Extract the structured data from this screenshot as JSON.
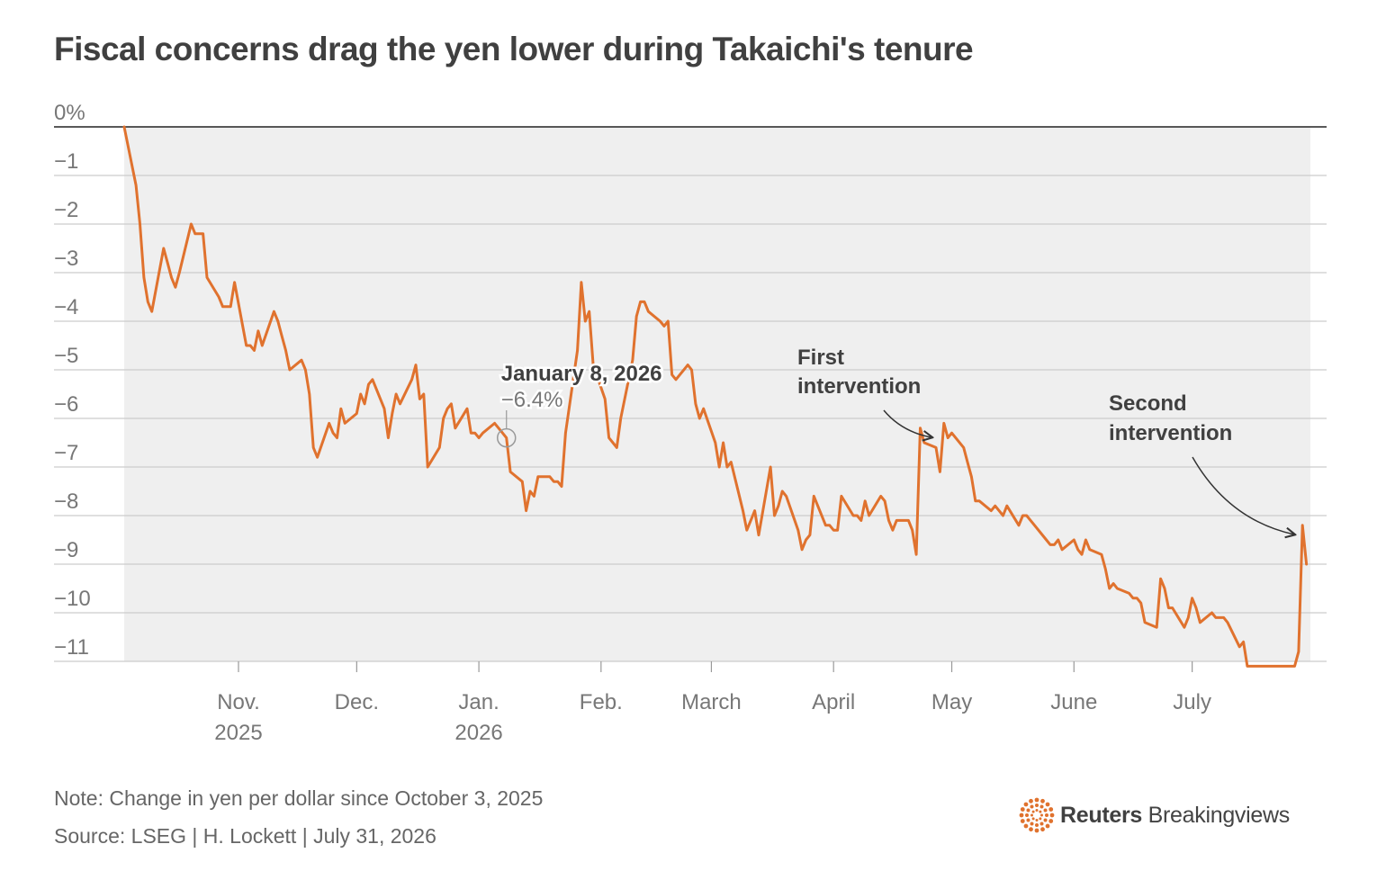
{
  "title": "Fiscal concerns drag the yen lower during Takaichi's tenure",
  "note": "Note: Change in yen per dollar since October 3, 2025",
  "source": "Source: LSEG | H. Lockett | July 31, 2026",
  "logo": {
    "brand": "Reuters",
    "product": "Breakingviews",
    "icon": "reuters-dot-ring-icon"
  },
  "colors": {
    "line": "#e0722e",
    "band": "#efefef",
    "grid": "#cccccc",
    "text": "#404040",
    "axis_text": "#777777"
  },
  "chart_data": {
    "type": "line",
    "title": "Fiscal concerns drag the yen lower during Takaichi's tenure",
    "xlabel": "",
    "ylabel": "",
    "ylim": [
      -11,
      0
    ],
    "xlim": [
      "2025-10-03",
      "2026-07-31"
    ],
    "grid": true,
    "y_ticks": [
      {
        "value": 0,
        "label": "0%"
      },
      {
        "value": -1,
        "label": "−1"
      },
      {
        "value": -2,
        "label": "−2"
      },
      {
        "value": -3,
        "label": "−3"
      },
      {
        "value": -4,
        "label": "−4"
      },
      {
        "value": -5,
        "label": "−5"
      },
      {
        "value": -6,
        "label": "−6"
      },
      {
        "value": -7,
        "label": "−7"
      },
      {
        "value": -8,
        "label": "−8"
      },
      {
        "value": -9,
        "label": "−9"
      },
      {
        "value": -10,
        "label": "−10"
      },
      {
        "value": -11,
        "label": "−11"
      }
    ],
    "x_ticks": [
      {
        "date": "2025-11-01",
        "label": "Nov.",
        "sublabel": "2025"
      },
      {
        "date": "2025-12-01",
        "label": "Dec.",
        "sublabel": ""
      },
      {
        "date": "2026-01-01",
        "label": "Jan.",
        "sublabel": "2026"
      },
      {
        "date": "2026-02-01",
        "label": "Feb.",
        "sublabel": ""
      },
      {
        "date": "2026-03-01",
        "label": "March",
        "sublabel": ""
      },
      {
        "date": "2026-04-01",
        "label": "April",
        "sublabel": ""
      },
      {
        "date": "2026-05-01",
        "label": "May",
        "sublabel": ""
      },
      {
        "date": "2026-06-01",
        "label": "June",
        "sublabel": ""
      },
      {
        "date": "2026-07-01",
        "label": "July",
        "sublabel": ""
      }
    ],
    "series": [
      {
        "name": "",
        "color": "#e0722e",
        "points": [
          [
            "2025-10-03",
            0.0
          ],
          [
            "2025-10-06",
            -1.2
          ],
          [
            "2025-10-07",
            -2.0
          ],
          [
            "2025-10-08",
            -3.1
          ],
          [
            "2025-10-09",
            -3.6
          ],
          [
            "2025-10-10",
            -3.8
          ],
          [
            "2025-10-13",
            -2.5
          ],
          [
            "2025-10-14",
            -2.8
          ],
          [
            "2025-10-15",
            -3.1
          ],
          [
            "2025-10-16",
            -3.3
          ],
          [
            "2025-10-17",
            -3.0
          ],
          [
            "2025-10-20",
            -2.0
          ],
          [
            "2025-10-21",
            -2.2
          ],
          [
            "2025-10-22",
            -2.2
          ],
          [
            "2025-10-23",
            -2.2
          ],
          [
            "2025-10-24",
            -3.1
          ],
          [
            "2025-10-27",
            -3.5
          ],
          [
            "2025-10-28",
            -3.7
          ],
          [
            "2025-10-29",
            -3.7
          ],
          [
            "2025-10-30",
            -3.7
          ],
          [
            "2025-10-31",
            -3.2
          ],
          [
            "2025-11-03",
            -4.5
          ],
          [
            "2025-11-04",
            -4.5
          ],
          [
            "2025-11-05",
            -4.6
          ],
          [
            "2025-11-06",
            -4.2
          ],
          [
            "2025-11-07",
            -4.5
          ],
          [
            "2025-11-10",
            -3.8
          ],
          [
            "2025-11-11",
            -4.0
          ],
          [
            "2025-11-12",
            -4.3
          ],
          [
            "2025-11-13",
            -4.6
          ],
          [
            "2025-11-14",
            -5.0
          ],
          [
            "2025-11-17",
            -4.8
          ],
          [
            "2025-11-18",
            -5.0
          ],
          [
            "2025-11-19",
            -5.5
          ],
          [
            "2025-11-20",
            -6.6
          ],
          [
            "2025-11-21",
            -6.8
          ],
          [
            "2025-11-24",
            -6.1
          ],
          [
            "2025-11-25",
            -6.3
          ],
          [
            "2025-11-26",
            -6.4
          ],
          [
            "2025-11-27",
            -5.8
          ],
          [
            "2025-11-28",
            -6.1
          ],
          [
            "2025-12-01",
            -5.9
          ],
          [
            "2025-12-02",
            -5.5
          ],
          [
            "2025-12-03",
            -5.7
          ],
          [
            "2025-12-04",
            -5.3
          ],
          [
            "2025-12-05",
            -5.2
          ],
          [
            "2025-12-08",
            -5.8
          ],
          [
            "2025-12-09",
            -6.4
          ],
          [
            "2025-12-10",
            -5.9
          ],
          [
            "2025-12-11",
            -5.5
          ],
          [
            "2025-12-12",
            -5.7
          ],
          [
            "2025-12-15",
            -5.2
          ],
          [
            "2025-12-16",
            -4.9
          ],
          [
            "2025-12-17",
            -5.6
          ],
          [
            "2025-12-18",
            -5.5
          ],
          [
            "2025-12-19",
            -7.0
          ],
          [
            "2025-12-22",
            -6.6
          ],
          [
            "2025-12-23",
            -6.0
          ],
          [
            "2025-12-24",
            -5.8
          ],
          [
            "2025-12-25",
            -5.7
          ],
          [
            "2025-12-26",
            -6.2
          ],
          [
            "2025-12-29",
            -5.8
          ],
          [
            "2025-12-30",
            -6.3
          ],
          [
            "2025-12-31",
            -6.3
          ],
          [
            "2026-01-01",
            -6.4
          ],
          [
            "2026-01-02",
            -6.3
          ],
          [
            "2026-01-05",
            -6.1
          ],
          [
            "2026-01-06",
            -6.2
          ],
          [
            "2026-01-07",
            -6.3
          ],
          [
            "2026-01-08",
            -6.4
          ],
          [
            "2026-01-09",
            -7.1
          ],
          [
            "2026-01-12",
            -7.3
          ],
          [
            "2026-01-13",
            -7.9
          ],
          [
            "2026-01-14",
            -7.5
          ],
          [
            "2026-01-15",
            -7.6
          ],
          [
            "2026-01-16",
            -7.2
          ],
          [
            "2026-01-19",
            -7.2
          ],
          [
            "2026-01-20",
            -7.3
          ],
          [
            "2026-01-21",
            -7.3
          ],
          [
            "2026-01-22",
            -7.4
          ],
          [
            "2026-01-23",
            -6.3
          ],
          [
            "2026-01-26",
            -4.6
          ],
          [
            "2026-01-27",
            -3.2
          ],
          [
            "2026-01-28",
            -4.0
          ],
          [
            "2026-01-29",
            -3.8
          ],
          [
            "2026-01-30",
            -4.9
          ],
          [
            "2026-02-02",
            -5.6
          ],
          [
            "2026-02-03",
            -6.4
          ],
          [
            "2026-02-04",
            -6.5
          ],
          [
            "2026-02-05",
            -6.6
          ],
          [
            "2026-02-06",
            -6.0
          ],
          [
            "2026-02-09",
            -4.8
          ],
          [
            "2026-02-10",
            -3.9
          ],
          [
            "2026-02-11",
            -3.6
          ],
          [
            "2026-02-12",
            -3.6
          ],
          [
            "2026-02-13",
            -3.8
          ],
          [
            "2026-02-16",
            -4.0
          ],
          [
            "2026-02-17",
            -4.1
          ],
          [
            "2026-02-18",
            -4.0
          ],
          [
            "2026-02-19",
            -5.1
          ],
          [
            "2026-02-20",
            -5.2
          ],
          [
            "2026-02-23",
            -4.9
          ],
          [
            "2026-02-24",
            -5.0
          ],
          [
            "2026-02-25",
            -5.7
          ],
          [
            "2026-02-26",
            -6.0
          ],
          [
            "2026-02-27",
            -5.8
          ],
          [
            "2026-03-02",
            -6.5
          ],
          [
            "2026-03-03",
            -7.0
          ],
          [
            "2026-03-04",
            -6.5
          ],
          [
            "2026-03-05",
            -7.0
          ],
          [
            "2026-03-06",
            -6.9
          ],
          [
            "2026-03-09",
            -7.9
          ],
          [
            "2026-03-10",
            -8.3
          ],
          [
            "2026-03-11",
            -8.1
          ],
          [
            "2026-03-12",
            -7.9
          ],
          [
            "2026-03-13",
            -8.4
          ],
          [
            "2026-03-16",
            -7.0
          ],
          [
            "2026-03-17",
            -8.0
          ],
          [
            "2026-03-18",
            -7.8
          ],
          [
            "2026-03-19",
            -7.5
          ],
          [
            "2026-03-20",
            -7.6
          ],
          [
            "2026-03-23",
            -8.3
          ],
          [
            "2026-03-24",
            -8.7
          ],
          [
            "2026-03-25",
            -8.5
          ],
          [
            "2026-03-26",
            -8.4
          ],
          [
            "2026-03-27",
            -7.6
          ],
          [
            "2026-03-30",
            -8.2
          ],
          [
            "2026-03-31",
            -8.2
          ],
          [
            "2026-04-01",
            -8.3
          ],
          [
            "2026-04-02",
            -8.3
          ],
          [
            "2026-04-03",
            -7.6
          ],
          [
            "2026-04-06",
            -8.0
          ],
          [
            "2026-04-07",
            -8.0
          ],
          [
            "2026-04-08",
            -8.1
          ],
          [
            "2026-04-09",
            -7.7
          ],
          [
            "2026-04-10",
            -8.0
          ],
          [
            "2026-04-13",
            -7.6
          ],
          [
            "2026-04-14",
            -7.7
          ],
          [
            "2026-04-15",
            -8.1
          ],
          [
            "2026-04-16",
            -8.3
          ],
          [
            "2026-04-17",
            -8.1
          ],
          [
            "2026-04-20",
            -8.1
          ],
          [
            "2026-04-21",
            -8.3
          ],
          [
            "2026-04-22",
            -8.8
          ],
          [
            "2026-04-23",
            -6.2
          ],
          [
            "2026-04-24",
            -6.5
          ],
          [
            "2026-04-27",
            -6.6
          ],
          [
            "2026-04-28",
            -7.1
          ],
          [
            "2026-04-29",
            -6.1
          ],
          [
            "2026-04-30",
            -6.4
          ],
          [
            "2026-05-01",
            -6.3
          ],
          [
            "2026-05-04",
            -6.6
          ],
          [
            "2026-05-05",
            -6.9
          ],
          [
            "2026-05-06",
            -7.2
          ],
          [
            "2026-05-07",
            -7.7
          ],
          [
            "2026-05-08",
            -7.7
          ],
          [
            "2026-05-11",
            -7.9
          ],
          [
            "2026-05-12",
            -7.8
          ],
          [
            "2026-05-13",
            -7.9
          ],
          [
            "2026-05-14",
            -8.0
          ],
          [
            "2026-05-15",
            -7.8
          ],
          [
            "2026-05-18",
            -8.2
          ],
          [
            "2026-05-19",
            -8.0
          ],
          [
            "2026-05-20",
            -8.0
          ],
          [
            "2026-05-21",
            -8.1
          ],
          [
            "2026-05-22",
            -8.2
          ],
          [
            "2026-05-25",
            -8.5
          ],
          [
            "2026-05-26",
            -8.6
          ],
          [
            "2026-05-27",
            -8.6
          ],
          [
            "2026-05-28",
            -8.5
          ],
          [
            "2026-05-29",
            -8.7
          ],
          [
            "2026-06-01",
            -8.5
          ],
          [
            "2026-06-02",
            -8.7
          ],
          [
            "2026-06-03",
            -8.8
          ],
          [
            "2026-06-04",
            -8.5
          ],
          [
            "2026-06-05",
            -8.7
          ],
          [
            "2026-06-08",
            -8.8
          ],
          [
            "2026-06-09",
            -9.1
          ],
          [
            "2026-06-10",
            -9.5
          ],
          [
            "2026-06-11",
            -9.4
          ],
          [
            "2026-06-12",
            -9.5
          ],
          [
            "2026-06-15",
            -9.6
          ],
          [
            "2026-06-16",
            -9.7
          ],
          [
            "2026-06-17",
            -9.7
          ],
          [
            "2026-06-18",
            -9.8
          ],
          [
            "2026-06-19",
            -10.2
          ],
          [
            "2026-06-22",
            -10.3
          ],
          [
            "2026-06-23",
            -9.3
          ],
          [
            "2026-06-24",
            -9.5
          ],
          [
            "2026-06-25",
            -9.9
          ],
          [
            "2026-06-26",
            -9.9
          ],
          [
            "2026-06-29",
            -10.3
          ],
          [
            "2026-06-30",
            -10.1
          ],
          [
            "2026-07-01",
            -9.7
          ],
          [
            "2026-07-02",
            -9.9
          ],
          [
            "2026-07-03",
            -10.2
          ],
          [
            "2026-07-06",
            -10.0
          ],
          [
            "2026-07-07",
            -10.1
          ],
          [
            "2026-07-08",
            -10.1
          ],
          [
            "2026-07-09",
            -10.1
          ],
          [
            "2026-07-10",
            -10.2
          ],
          [
            "2026-07-13",
            -10.7
          ],
          [
            "2026-07-14",
            -10.6
          ],
          [
            "2026-07-15",
            -11.1
          ],
          [
            "2026-07-20",
            -11.1
          ],
          [
            "2026-07-27",
            -11.1
          ],
          [
            "2026-07-28",
            -10.8
          ],
          [
            "2026-07-29",
            -8.2
          ],
          [
            "2026-07-30",
            -9.0
          ]
        ]
      }
    ],
    "annotations": [
      {
        "type": "highlight-point",
        "date": "2026-01-08",
        "value": -6.4,
        "label": "January 8, 2026",
        "sublabel": "−6.4%"
      },
      {
        "type": "arrow",
        "label": [
          "First",
          "intervention"
        ],
        "target_date": "2026-04-23",
        "target_value": -6.5
      },
      {
        "type": "arrow",
        "label": [
          "Second",
          "intervention"
        ],
        "target_date": "2026-07-29",
        "target_value": -8.4
      }
    ]
  }
}
